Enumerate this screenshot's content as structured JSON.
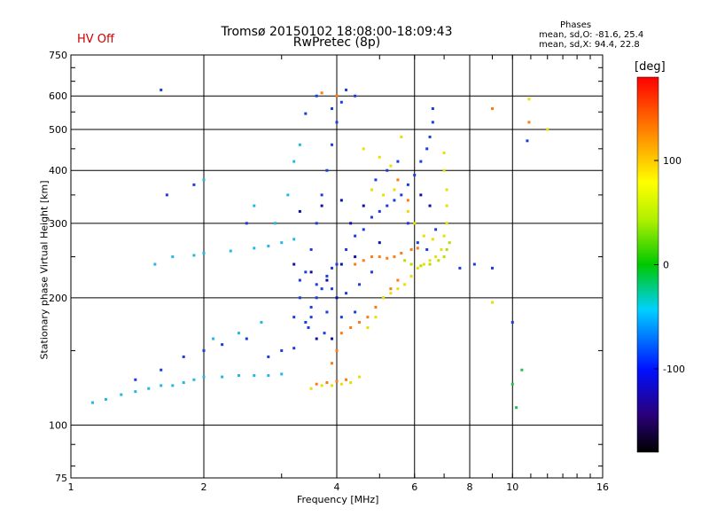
{
  "header": {
    "title_line1": "Tromsø 20150102 18:08:00-18:09:43",
    "title_line2": "RwPretec (8p)",
    "hv_status": "HV Off",
    "phases_title": "Phases",
    "phases_o": "mean, sd,O: -81.6, 25.4",
    "phases_x": "mean, sd,X:  94.4, 22.8"
  },
  "colors": {
    "hv_status": "#cc0000",
    "grid": "#000000"
  },
  "chart_data": {
    "type": "scatter",
    "xlabel": "Frequency [MHz]",
    "ylabel": "Stationary phase Virtual Height [km]",
    "x_scale": "log",
    "y_scale": "log",
    "xlim": [
      1,
      16
    ],
    "ylim": [
      75,
      750
    ],
    "xticks": [
      1,
      2,
      4,
      6,
      8,
      10,
      16
    ],
    "yticks": [
      75,
      100,
      200,
      300,
      400,
      500,
      600,
      750
    ],
    "grid": true,
    "colorbar": {
      "label": "[deg]",
      "range": [
        -180,
        180
      ],
      "ticks": [
        100,
        0,
        -100
      ],
      "colormap": "rainbow (black-violet-blue-cyan-green-yellow-red)"
    },
    "series": [
      {
        "phase_deg": -40,
        "points": [
          [
            1.12,
            113
          ],
          [
            1.2,
            115
          ],
          [
            1.3,
            118
          ],
          [
            1.4,
            120
          ],
          [
            1.5,
            122
          ],
          [
            1.6,
            124
          ],
          [
            1.7,
            124
          ],
          [
            1.8,
            126
          ],
          [
            1.9,
            128
          ],
          [
            2.0,
            130
          ],
          [
            2.2,
            130
          ],
          [
            2.4,
            131
          ],
          [
            2.6,
            131
          ],
          [
            2.8,
            131
          ],
          [
            3.0,
            132
          ],
          [
            2.1,
            160
          ],
          [
            2.4,
            165
          ],
          [
            2.7,
            175
          ],
          [
            1.55,
            240
          ],
          [
            1.7,
            250
          ],
          [
            1.9,
            252
          ],
          [
            2.0,
            255
          ],
          [
            2.3,
            258
          ],
          [
            2.6,
            262
          ],
          [
            2.8,
            265
          ],
          [
            3.0,
            270
          ],
          [
            3.2,
            275
          ],
          [
            2.9,
            300
          ],
          [
            3.1,
            350
          ],
          [
            3.2,
            420
          ],
          [
            3.3,
            460
          ],
          [
            2.0,
            380
          ],
          [
            2.6,
            330
          ]
        ],
        "color": "#22b8e6"
      },
      {
        "phase_deg": -100,
        "points": [
          [
            1.4,
            128
          ],
          [
            1.6,
            135
          ],
          [
            1.8,
            145
          ],
          [
            2.0,
            150
          ],
          [
            2.2,
            155
          ],
          [
            2.5,
            160
          ],
          [
            2.8,
            145
          ],
          [
            3.0,
            150
          ],
          [
            3.2,
            152
          ],
          [
            3.4,
            175
          ],
          [
            3.5,
            180
          ],
          [
            3.6,
            200
          ],
          [
            3.7,
            210
          ],
          [
            3.8,
            225
          ],
          [
            3.9,
            235
          ],
          [
            4.0,
            240
          ],
          [
            4.2,
            260
          ],
          [
            4.4,
            280
          ],
          [
            4.6,
            290
          ],
          [
            4.8,
            310
          ],
          [
            5.0,
            320
          ],
          [
            5.2,
            330
          ],
          [
            5.4,
            340
          ],
          [
            5.6,
            350
          ],
          [
            3.3,
            200
          ],
          [
            3.4,
            230
          ],
          [
            3.5,
            260
          ],
          [
            3.6,
            300
          ],
          [
            3.7,
            350
          ],
          [
            3.8,
            400
          ],
          [
            3.9,
            460
          ],
          [
            4.0,
            520
          ],
          [
            4.1,
            580
          ],
          [
            4.2,
            620
          ],
          [
            5.8,
            370
          ],
          [
            6.0,
            390
          ],
          [
            6.2,
            420
          ],
          [
            6.4,
            450
          ],
          [
            6.5,
            480
          ],
          [
            6.6,
            520
          ],
          [
            6.6,
            560
          ],
          [
            3.3,
            220
          ],
          [
            3.6,
            215
          ],
          [
            3.9,
            210
          ],
          [
            4.2,
            205
          ],
          [
            4.5,
            215
          ],
          [
            4.8,
            230
          ],
          [
            3.5,
            190
          ],
          [
            3.8,
            185
          ],
          [
            4.1,
            180
          ],
          [
            4.4,
            185
          ],
          [
            3.2,
            180
          ],
          [
            3.45,
            170
          ],
          [
            3.75,
            165
          ],
          [
            1.6,
            620
          ],
          [
            1.65,
            350
          ],
          [
            1.9,
            370
          ],
          [
            2.5,
            300
          ],
          [
            3.4,
            545
          ],
          [
            3.6,
            600
          ],
          [
            3.9,
            560
          ],
          [
            4.4,
            600
          ],
          [
            7.6,
            235
          ],
          [
            8.2,
            240
          ],
          [
            9.0,
            235
          ],
          [
            10,
            175
          ],
          [
            10.8,
            470
          ],
          [
            4.9,
            380
          ],
          [
            5.2,
            400
          ],
          [
            5.5,
            420
          ],
          [
            5.8,
            300
          ],
          [
            6.1,
            270
          ],
          [
            6.4,
            260
          ],
          [
            6.7,
            290
          ]
        ],
        "color": "#1a3de0"
      },
      {
        "phase_deg": -130,
        "points": [
          [
            3.2,
            240
          ],
          [
            3.5,
            230
          ],
          [
            3.8,
            220
          ],
          [
            4.1,
            240
          ],
          [
            4.4,
            250
          ],
          [
            3.6,
            160
          ],
          [
            3.9,
            160
          ],
          [
            4.0,
            200
          ],
          [
            4.3,
            300
          ],
          [
            4.6,
            330
          ],
          [
            5.0,
            270
          ],
          [
            3.3,
            320
          ],
          [
            3.7,
            330
          ],
          [
            4.1,
            340
          ],
          [
            6.2,
            350
          ],
          [
            6.5,
            330
          ]
        ],
        "color": "#1010a0"
      },
      {
        "phase_deg": 130,
        "points": [
          [
            3.6,
            125
          ],
          [
            3.8,
            126
          ],
          [
            4.0,
            127
          ],
          [
            4.2,
            128
          ],
          [
            3.9,
            140
          ],
          [
            4.0,
            150
          ],
          [
            4.1,
            165
          ],
          [
            4.3,
            170
          ],
          [
            4.5,
            175
          ],
          [
            4.7,
            180
          ],
          [
            4.9,
            190
          ],
          [
            5.1,
            200
          ],
          [
            5.3,
            210
          ],
          [
            5.5,
            220
          ],
          [
            4.4,
            240
          ],
          [
            4.6,
            245
          ],
          [
            4.8,
            250
          ],
          [
            5.0,
            250
          ],
          [
            5.2,
            248
          ],
          [
            5.4,
            250
          ],
          [
            5.6,
            255
          ],
          [
            5.9,
            260
          ],
          [
            6.1,
            262
          ],
          [
            3.7,
            610
          ],
          [
            4.0,
            600
          ],
          [
            5.5,
            380
          ],
          [
            5.8,
            340
          ],
          [
            10.9,
            520
          ],
          [
            9.0,
            560
          ]
        ],
        "color": "#ff7a10"
      },
      {
        "phase_deg": 90,
        "points": [
          [
            3.5,
            122
          ],
          [
            3.7,
            124
          ],
          [
            3.9,
            124
          ],
          [
            4.1,
            125
          ],
          [
            4.3,
            126
          ],
          [
            4.5,
            130
          ],
          [
            4.7,
            170
          ],
          [
            4.9,
            180
          ],
          [
            5.1,
            200
          ],
          [
            5.3,
            205
          ],
          [
            5.5,
            210
          ],
          [
            5.7,
            215
          ],
          [
            5.9,
            225
          ],
          [
            6.1,
            235
          ],
          [
            6.3,
            240
          ],
          [
            6.5,
            245
          ],
          [
            6.7,
            250
          ],
          [
            6.9,
            260
          ],
          [
            7.0,
            280
          ],
          [
            7.1,
            300
          ],
          [
            7.1,
            330
          ],
          [
            7.1,
            360
          ],
          [
            7.0,
            400
          ],
          [
            7.0,
            440
          ],
          [
            4.6,
            450
          ],
          [
            5.0,
            430
          ],
          [
            5.3,
            410
          ],
          [
            5.6,
            480
          ],
          [
            4.8,
            360
          ],
          [
            5.1,
            350
          ],
          [
            5.4,
            360
          ],
          [
            5.8,
            320
          ],
          [
            6.0,
            300
          ],
          [
            6.3,
            280
          ],
          [
            6.6,
            275
          ],
          [
            9.0,
            195
          ],
          [
            10.9,
            590
          ],
          [
            12.0,
            500
          ]
        ],
        "color": "#e8e000"
      },
      {
        "phase_deg": 60,
        "points": [
          [
            6.8,
            245
          ],
          [
            7.0,
            250
          ],
          [
            7.1,
            260
          ],
          [
            7.2,
            270
          ],
          [
            6.5,
            240
          ],
          [
            6.2,
            238
          ],
          [
            5.9,
            240
          ],
          [
            5.7,
            245
          ]
        ],
        "color": "#b5e000"
      },
      {
        "phase_deg": 0,
        "points": [
          [
            10.2,
            110
          ],
          [
            10.0,
            125
          ],
          [
            10.5,
            135
          ]
        ],
        "color": "#22c24a"
      }
    ]
  }
}
